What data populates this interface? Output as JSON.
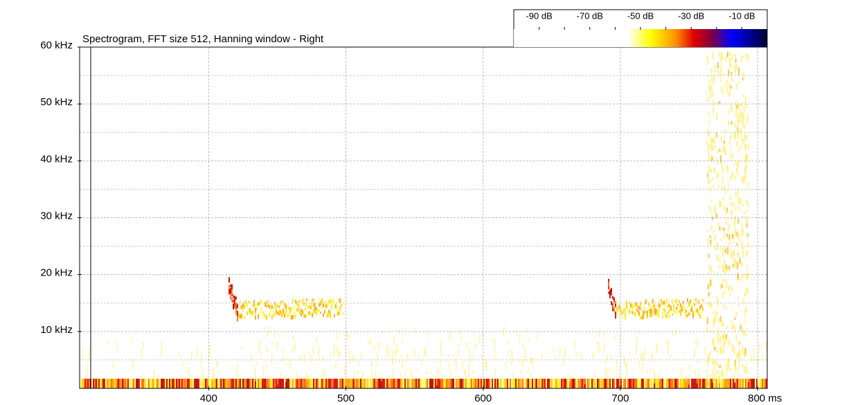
{
  "chart_data": {
    "type": "spectrogram",
    "title": "Spectrogram, FFT size 512, Hanning window - Right",
    "xlim": [
      306,
      807
    ],
    "xticks": [
      400,
      500,
      600,
      700,
      {
        "value": 800,
        "label": "800 ms"
      }
    ],
    "ylim": [
      0,
      60
    ],
    "yticks": [
      {
        "value": 10,
        "label": "10 kHz"
      },
      {
        "value": 20,
        "label": "20 kHz"
      },
      {
        "value": 30,
        "label": "30 kHz"
      },
      {
        "value": 40,
        "label": "40 kHz"
      },
      {
        "value": 50,
        "label": "50 kHz"
      },
      {
        "value": 60,
        "label": "60 kHz"
      }
    ],
    "y_minor_grid": [
      5,
      15,
      25,
      35,
      45,
      55
    ],
    "grid": true,
    "colorbar_lim": [
      -100,
      0
    ],
    "colorbar_ticks": [
      {
        "value": -90,
        "label": "-90 dB"
      },
      {
        "value": -70,
        "label": "-70 dB"
      },
      {
        "value": -50,
        "label": "-50 dB"
      },
      {
        "value": -30,
        "label": "-30 dB"
      },
      {
        "value": -10,
        "label": "-10 dB"
      }
    ],
    "colorbar_minor_ticks": [
      -80,
      -60,
      -40,
      -20
    ],
    "colormap": [
      {
        "value": -55,
        "color": "#ffffff"
      },
      {
        "value": -46,
        "color": "#ffff00"
      },
      {
        "value": -36,
        "color": "#ff9000"
      },
      {
        "value": -29,
        "color": "#e00000"
      },
      {
        "value": -22,
        "color": "#800040"
      },
      {
        "value": -14,
        "color": "#0000ff"
      },
      {
        "value": 0,
        "color": "#000030"
      }
    ]
  }
}
